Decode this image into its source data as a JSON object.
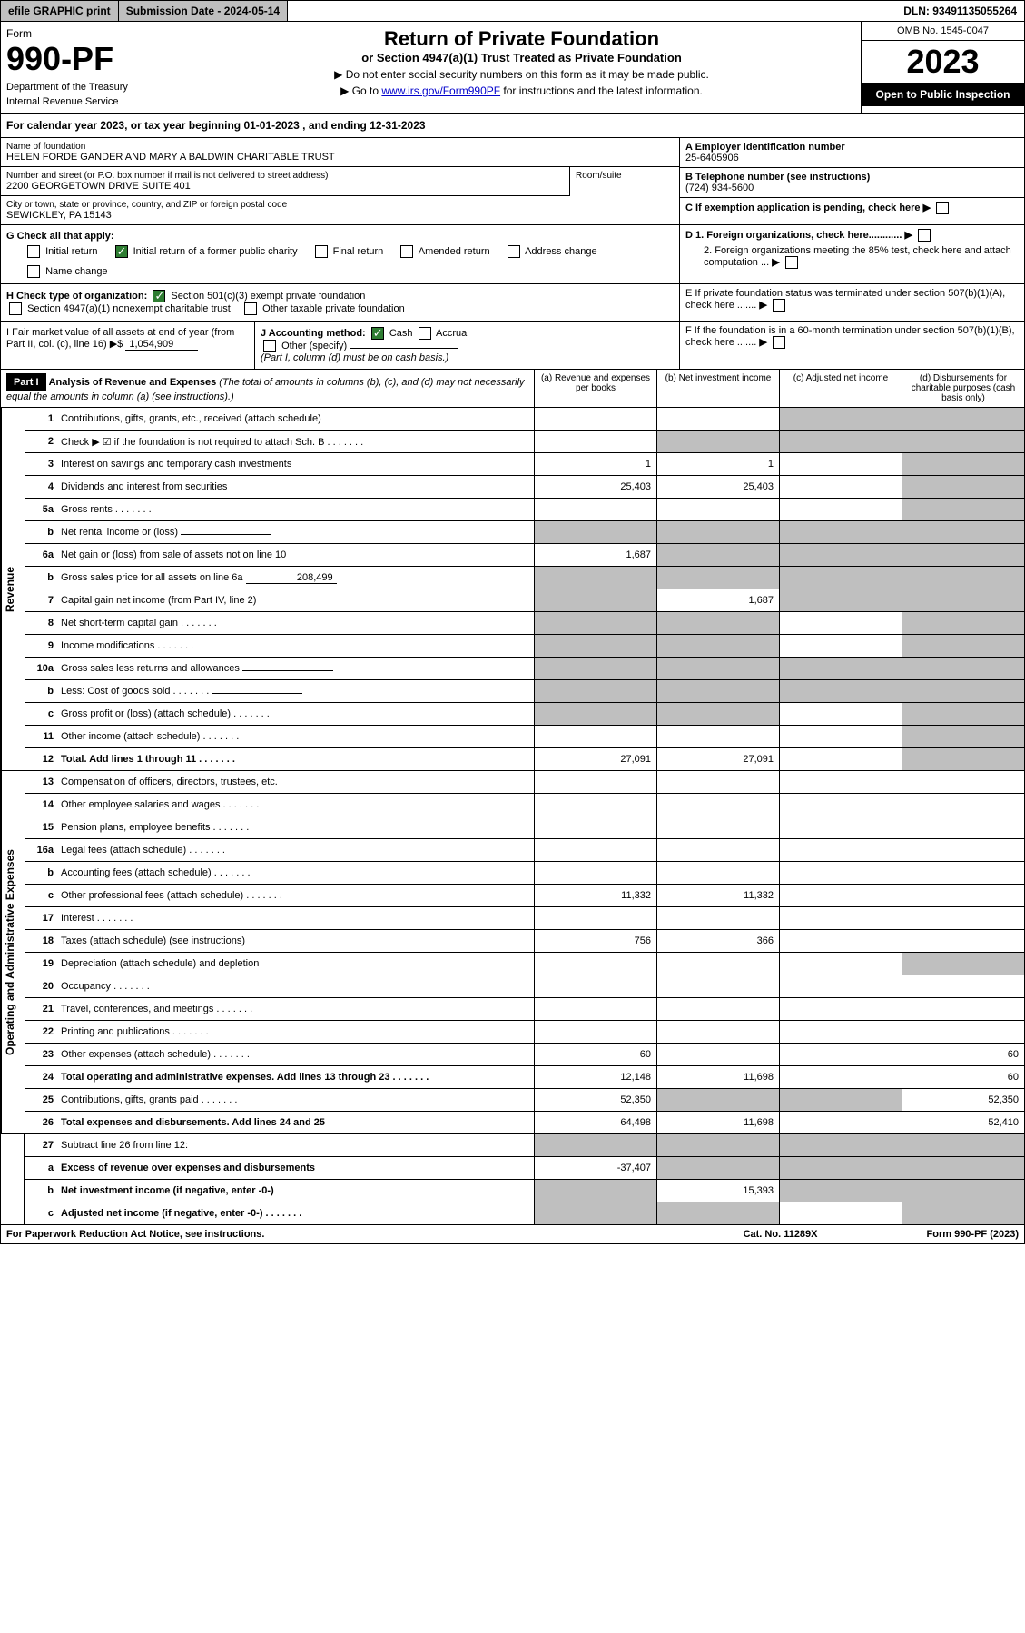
{
  "top": {
    "efile": "efile GRAPHIC print",
    "submission_label": "Submission Date - ",
    "submission_date": "2024-05-14",
    "dln": "DLN: 93491135055264"
  },
  "header": {
    "form_label": "Form",
    "form_no": "990-PF",
    "dept1": "Department of the Treasury",
    "dept2": "Internal Revenue Service",
    "title": "Return of Private Foundation",
    "subtitle": "or Section 4947(a)(1) Trust Treated as Private Foundation",
    "instr1": "▶ Do not enter social security numbers on this form as it may be made public.",
    "instr2_pre": "▶ Go to ",
    "instr2_link": "www.irs.gov/Form990PF",
    "instr2_post": " for instructions and the latest information.",
    "omb": "OMB No. 1545-0047",
    "year": "2023",
    "open_public": "Open to Public Inspection"
  },
  "cal": {
    "text_pre": "For calendar year 2023, or tax year beginning ",
    "begin": "01-01-2023",
    "text_mid": " , and ending ",
    "end": "12-31-2023"
  },
  "foundation": {
    "name_label": "Name of foundation",
    "name": "HELEN FORDE GANDER AND MARY A BALDWIN CHARITABLE TRUST",
    "addr_label": "Number and street (or P.O. box number if mail is not delivered to street address)",
    "addr": "2200 GEORGETOWN DRIVE SUITE 401",
    "room_label": "Room/suite",
    "city_label": "City or town, state or province, country, and ZIP or foreign postal code",
    "city": "SEWICKLEY, PA  15143",
    "ein_label": "A Employer identification number",
    "ein": "25-6405906",
    "phone_label": "B Telephone number (see instructions)",
    "phone": "(724) 934-5600",
    "c_label": "C If exemption application is pending, check here",
    "d1": "D 1. Foreign organizations, check here............",
    "d2": "2. Foreign organizations meeting the 85% test, check here and attach computation ...",
    "e": "E  If private foundation status was terminated under section 507(b)(1)(A), check here .......",
    "f": "F  If the foundation is in a 60-month termination under section 507(b)(1)(B), check here .......",
    "g_label": "G Check all that apply:",
    "g_opts": [
      "Initial return",
      "Initial return of a former public charity",
      "Final return",
      "Amended return",
      "Address change",
      "Name change"
    ],
    "h_label": "H Check type of organization:",
    "h_opts": [
      "Section 501(c)(3) exempt private foundation",
      "Section 4947(a)(1) nonexempt charitable trust",
      "Other taxable private foundation"
    ],
    "i_label": "I Fair market value of all assets at end of year (from Part II, col. (c), line 16) ▶$",
    "i_val": "1,054,909",
    "j_label": "J Accounting method:",
    "j_opts": [
      "Cash",
      "Accrual",
      "Other (specify)"
    ],
    "j_note": "(Part I, column (d) must be on cash basis.)"
  },
  "part1": {
    "header": "Part I",
    "title": "Analysis of Revenue and Expenses",
    "title_note": "(The total of amounts in columns (b), (c), and (d) may not necessarily equal the amounts in column (a) (see instructions).)",
    "cols": [
      "(a)   Revenue and expenses per books",
      "(b)   Net investment income",
      "(c)   Adjusted net income",
      "(d)   Disbursements for charitable purposes (cash basis only)"
    ]
  },
  "revenue": {
    "label": "Revenue",
    "lines": [
      {
        "no": "1",
        "desc": "Contributions, gifts, grants, etc., received (attach schedule)",
        "a": "",
        "b": "",
        "c": "shaded",
        "d": "shaded"
      },
      {
        "no": "2",
        "desc": "Check ▶ ☑ if the foundation is not required to attach Sch. B",
        "a": "",
        "b": "shaded",
        "c": "shaded",
        "d": "shaded",
        "b_val": "",
        "dots": true
      },
      {
        "no": "3",
        "desc": "Interest on savings and temporary cash investments",
        "a": "1",
        "b": "1",
        "c": "",
        "d": "shaded"
      },
      {
        "no": "4",
        "desc": "Dividends and interest from securities",
        "a": "25,403",
        "b": "25,403",
        "c": "",
        "d": "shaded"
      },
      {
        "no": "5a",
        "desc": "Gross rents",
        "a": "",
        "b": "",
        "c": "",
        "d": "shaded",
        "dots": true
      },
      {
        "no": "b",
        "desc": "Net rental income or (loss)",
        "a": "shaded",
        "b": "shaded",
        "c": "shaded",
        "d": "shaded",
        "fill": true
      },
      {
        "no": "6a",
        "desc": "Net gain or (loss) from sale of assets not on line 10",
        "a": "1,687",
        "b": "shaded",
        "c": "shaded",
        "d": "shaded"
      },
      {
        "no": "b",
        "desc": "Gross sales price for all assets on line 6a",
        "a": "shaded",
        "b": "shaded",
        "c": "shaded",
        "d": "shaded",
        "fill": true,
        "fill_val": "208,499"
      },
      {
        "no": "7",
        "desc": "Capital gain net income (from Part IV, line 2)",
        "a": "shaded",
        "b": "1,687",
        "c": "shaded",
        "d": "shaded"
      },
      {
        "no": "8",
        "desc": "Net short-term capital gain",
        "a": "shaded",
        "b": "shaded",
        "c": "",
        "d": "shaded",
        "dots": true
      },
      {
        "no": "9",
        "desc": "Income modifications",
        "a": "shaded",
        "b": "shaded",
        "c": "",
        "d": "shaded",
        "dots": true
      },
      {
        "no": "10a",
        "desc": "Gross sales less returns and allowances",
        "a": "shaded",
        "b": "shaded",
        "c": "shaded",
        "d": "shaded",
        "fill": true
      },
      {
        "no": "b",
        "desc": "Less: Cost of goods sold",
        "a": "shaded",
        "b": "shaded",
        "c": "shaded",
        "d": "shaded",
        "fill": true,
        "dots": true
      },
      {
        "no": "c",
        "desc": "Gross profit or (loss) (attach schedule)",
        "a": "shaded",
        "b": "shaded",
        "c": "",
        "d": "shaded",
        "dots": true
      },
      {
        "no": "11",
        "desc": "Other income (attach schedule)",
        "a": "",
        "b": "",
        "c": "",
        "d": "shaded",
        "dots": true
      },
      {
        "no": "12",
        "desc": "Total. Add lines 1 through 11",
        "a": "27,091",
        "b": "27,091",
        "c": "",
        "d": "shaded",
        "bold": true,
        "dots": true
      }
    ]
  },
  "expenses": {
    "label": "Operating and Administrative Expenses",
    "lines": [
      {
        "no": "13",
        "desc": "Compensation of officers, directors, trustees, etc.",
        "a": "",
        "b": "",
        "c": "",
        "d": ""
      },
      {
        "no": "14",
        "desc": "Other employee salaries and wages",
        "a": "",
        "b": "",
        "c": "",
        "d": "",
        "dots": true
      },
      {
        "no": "15",
        "desc": "Pension plans, employee benefits",
        "a": "",
        "b": "",
        "c": "",
        "d": "",
        "dots": true
      },
      {
        "no": "16a",
        "desc": "Legal fees (attach schedule)",
        "a": "",
        "b": "",
        "c": "",
        "d": "",
        "dots": true
      },
      {
        "no": "b",
        "desc": "Accounting fees (attach schedule)",
        "a": "",
        "b": "",
        "c": "",
        "d": "",
        "dots": true
      },
      {
        "no": "c",
        "desc": "Other professional fees (attach schedule)",
        "a": "11,332",
        "b": "11,332",
        "c": "",
        "d": "",
        "dots": true
      },
      {
        "no": "17",
        "desc": "Interest",
        "a": "",
        "b": "",
        "c": "",
        "d": "",
        "dots": true
      },
      {
        "no": "18",
        "desc": "Taxes (attach schedule) (see instructions)",
        "a": "756",
        "b": "366",
        "c": "",
        "d": ""
      },
      {
        "no": "19",
        "desc": "Depreciation (attach schedule) and depletion",
        "a": "",
        "b": "",
        "c": "",
        "d": "shaded"
      },
      {
        "no": "20",
        "desc": "Occupancy",
        "a": "",
        "b": "",
        "c": "",
        "d": "",
        "dots": true
      },
      {
        "no": "21",
        "desc": "Travel, conferences, and meetings",
        "a": "",
        "b": "",
        "c": "",
        "d": "",
        "dots": true
      },
      {
        "no": "22",
        "desc": "Printing and publications",
        "a": "",
        "b": "",
        "c": "",
        "d": "",
        "dots": true
      },
      {
        "no": "23",
        "desc": "Other expenses (attach schedule)",
        "a": "60",
        "b": "",
        "c": "",
        "d": "60",
        "dots": true
      },
      {
        "no": "24",
        "desc": "Total operating and administrative expenses. Add lines 13 through 23",
        "a": "12,148",
        "b": "11,698",
        "c": "",
        "d": "60",
        "bold": true,
        "dots": true
      },
      {
        "no": "25",
        "desc": "Contributions, gifts, grants paid",
        "a": "52,350",
        "b": "shaded",
        "c": "shaded",
        "d": "52,350",
        "dots": true
      },
      {
        "no": "26",
        "desc": "Total expenses and disbursements. Add lines 24 and 25",
        "a": "64,498",
        "b": "11,698",
        "c": "",
        "d": "52,410",
        "bold": true
      }
    ]
  },
  "bottom": {
    "lines": [
      {
        "no": "27",
        "desc": "Subtract line 26 from line 12:",
        "a": "shaded",
        "b": "shaded",
        "c": "shaded",
        "d": "shaded"
      },
      {
        "no": "a",
        "desc": "Excess of revenue over expenses and disbursements",
        "a": "-37,407",
        "b": "shaded",
        "c": "shaded",
        "d": "shaded",
        "bold": true
      },
      {
        "no": "b",
        "desc": "Net investment income (if negative, enter -0-)",
        "a": "shaded",
        "b": "15,393",
        "c": "shaded",
        "d": "shaded",
        "bold": true
      },
      {
        "no": "c",
        "desc": "Adjusted net income (if negative, enter -0-)",
        "a": "shaded",
        "b": "shaded",
        "c": "",
        "d": "shaded",
        "bold": true,
        "dots": true
      }
    ]
  },
  "footer": {
    "left": "For Paperwork Reduction Act Notice, see instructions.",
    "mid": "Cat. No. 11289X",
    "right": "Form 990-PF (2023)"
  }
}
